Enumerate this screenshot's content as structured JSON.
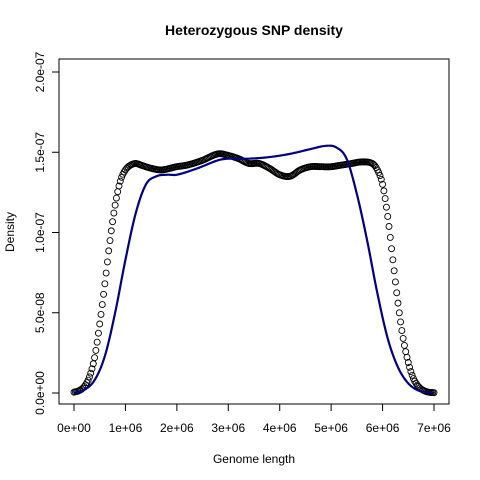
{
  "chart_data": {
    "type": "line",
    "title": "Heterozygous SNP density",
    "xlabel": "Genome length",
    "ylabel": "Density",
    "xlim": [
      0,
      7000000
    ],
    "ylim": [
      0,
      2.1e-07
    ],
    "x_ticks": [
      {
        "value": 0,
        "label": "0e+00"
      },
      {
        "value": 1000000,
        "label": "1e+06"
      },
      {
        "value": 2000000,
        "label": "2e+06"
      },
      {
        "value": 3000000,
        "label": "3e+06"
      },
      {
        "value": 4000000,
        "label": "4e+06"
      },
      {
        "value": 5000000,
        "label": "5e+06"
      },
      {
        "value": 6000000,
        "label": "6e+06"
      },
      {
        "value": 7000000,
        "label": "7e+06"
      }
    ],
    "y_ticks": [
      {
        "value": 0,
        "label": "0.0e+00"
      },
      {
        "value": 5e-08,
        "label": "5.0e-08"
      },
      {
        "value": 1e-07,
        "label": "1.0e-07"
      },
      {
        "value": 1.5e-07,
        "label": "1.5e-07"
      },
      {
        "value": 2e-07,
        "label": "2.0e-07"
      }
    ],
    "grid": false,
    "legend": "none",
    "series": [
      {
        "style": "points",
        "marker": "open-circle",
        "color": "#000000",
        "x": [
          0,
          100000,
          200000,
          300000,
          400000,
          500000,
          600000,
          700000,
          800000,
          900000,
          1000000,
          1100000,
          1200000,
          1300000,
          1500000,
          1700000,
          2000000,
          2200000,
          2500000,
          2800000,
          3000000,
          3200000,
          3400000,
          3600000,
          3800000,
          4000000,
          4200000,
          4400000,
          4600000,
          4800000,
          5000000,
          5200000,
          5400000,
          5600000,
          5800000,
          5900000,
          6000000,
          6100000,
          6200000,
          6300000,
          6400000,
          6500000,
          6600000,
          6700000,
          6800000,
          6900000,
          7000000
        ],
        "y": [
          5e-10,
          1.5e-09,
          4e-09,
          1e-08,
          2.2e-08,
          4.3e-08,
          6.8e-08,
          9.5e-08,
          1.17e-07,
          1.32e-07,
          1.39e-07,
          1.42e-07,
          1.43e-07,
          1.42e-07,
          1.4e-07,
          1.39e-07,
          1.41e-07,
          1.42e-07,
          1.45e-07,
          1.49e-07,
          1.48e-07,
          1.46e-07,
          1.43e-07,
          1.43e-07,
          1.4e-07,
          1.36e-07,
          1.35e-07,
          1.39e-07,
          1.41e-07,
          1.41e-07,
          1.41e-07,
          1.42e-07,
          1.43e-07,
          1.44e-07,
          1.43e-07,
          1.39e-07,
          1.3e-07,
          1.1e-07,
          8.3e-08,
          5.6e-08,
          3.4e-08,
          1.9e-08,
          9e-09,
          4e-09,
          1.5e-09,
          5e-10,
          2e-10
        ]
      },
      {
        "style": "line",
        "color": "#000080",
        "x": [
          0,
          200000,
          400000,
          600000,
          800000,
          1000000,
          1200000,
          1400000,
          1600000,
          1800000,
          2000000,
          2400000,
          2800000,
          3000000,
          3400000,
          3800000,
          4200000,
          4600000,
          4900000,
          5100000,
          5300000,
          5500000,
          5700000,
          5900000,
          6100000,
          6300000,
          6500000,
          6700000,
          6900000,
          7000000
        ],
        "y": [
          1e-10,
          2e-09,
          8e-09,
          2.3e-08,
          5e-08,
          8.3e-08,
          1.12e-07,
          1.3e-07,
          1.35e-07,
          1.36e-07,
          1.36e-07,
          1.4e-07,
          1.45e-07,
          1.46e-07,
          1.46e-07,
          1.47e-07,
          1.49e-07,
          1.52e-07,
          1.54e-07,
          1.53e-07,
          1.46e-07,
          1.24e-07,
          9.5e-08,
          6.2e-08,
          3.4e-08,
          1.6e-08,
          6e-09,
          1.5e-09,
          3e-10,
          1e-10
        ]
      }
    ]
  }
}
